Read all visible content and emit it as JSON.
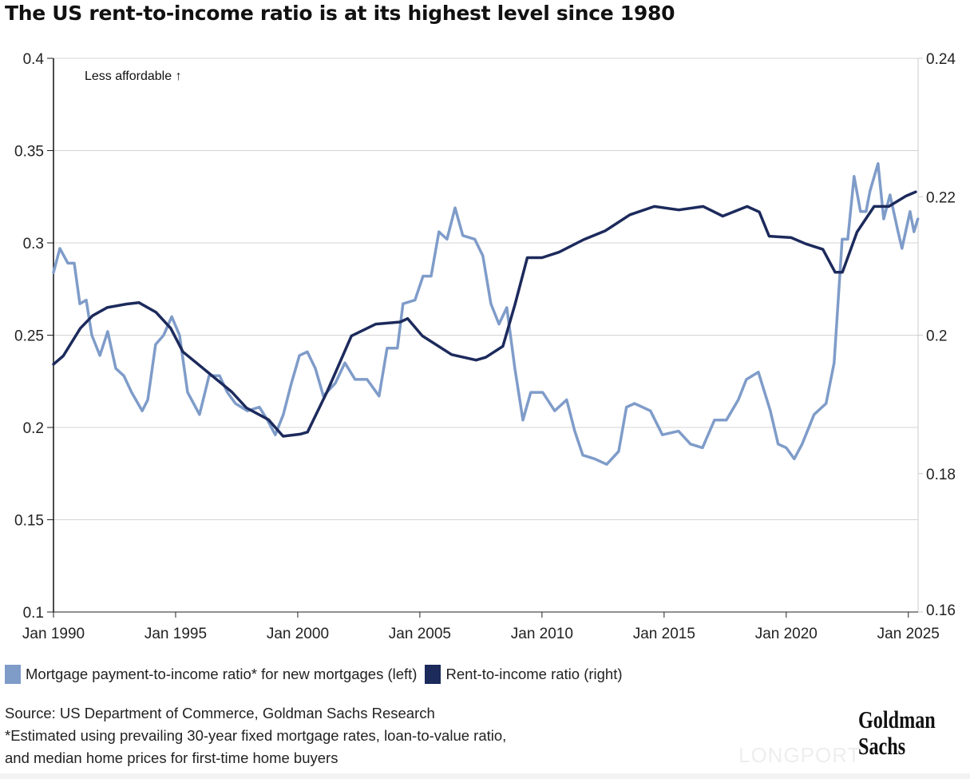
{
  "chart_data": {
    "type": "line",
    "title": "The US rent-to-income ratio is at its highest level since 1980",
    "annotation": "Less affordable ↑",
    "xlim": [
      1990,
      2025.4
    ],
    "x_ticks": [
      1990,
      1995,
      2000,
      2005,
      2010,
      2015,
      2020,
      2025
    ],
    "x_tick_labels": [
      "Jan 1990",
      "Jan 1995",
      "Jan 2000",
      "Jan 2005",
      "Jan 2010",
      "Jan 2015",
      "Jan 2020",
      "Jan 2025"
    ],
    "y_left": {
      "lim": [
        0.1,
        0.4
      ],
      "ticks": [
        0.1,
        0.15,
        0.2,
        0.25,
        0.3,
        0.35,
        0.4
      ],
      "tick_labels": [
        "0.1",
        "0.15",
        "0.2",
        "0.25",
        "0.3",
        "0.35",
        "0.4"
      ]
    },
    "y_right": {
      "lim": [
        0.16,
        0.24
      ],
      "ticks": [
        0.16,
        0.18,
        0.2,
        0.22,
        0.24
      ],
      "tick_labels": [
        "0.16",
        "0.18",
        "0.2",
        "0.22",
        "0.24"
      ]
    },
    "grid": "horizontal",
    "legend_position": "bottom",
    "series": [
      {
        "name": "Mortgage payment-to-income ratio* for new mortgages (left)",
        "axis": "left",
        "color": "#7f9cc9",
        "points": [
          [
            1990.0,
            0.284
          ],
          [
            1990.26,
            0.297
          ],
          [
            1990.59,
            0.289
          ],
          [
            1990.85,
            0.289
          ],
          [
            1991.08,
            0.267
          ],
          [
            1991.34,
            0.269
          ],
          [
            1991.57,
            0.25
          ],
          [
            1991.9,
            0.239
          ],
          [
            1992.22,
            0.252
          ],
          [
            1992.55,
            0.232
          ],
          [
            1992.88,
            0.228
          ],
          [
            1993.2,
            0.219
          ],
          [
            1993.63,
            0.209
          ],
          [
            1993.86,
            0.215
          ],
          [
            1994.18,
            0.245
          ],
          [
            1994.51,
            0.25
          ],
          [
            1994.84,
            0.26
          ],
          [
            1995.16,
            0.25
          ],
          [
            1995.49,
            0.219
          ],
          [
            1995.98,
            0.207
          ],
          [
            1996.37,
            0.228
          ],
          [
            1996.8,
            0.228
          ],
          [
            1997.12,
            0.219
          ],
          [
            1997.45,
            0.213
          ],
          [
            1997.94,
            0.209
          ],
          [
            1998.43,
            0.211
          ],
          [
            1998.76,
            0.204
          ],
          [
            1999.08,
            0.196
          ],
          [
            1999.41,
            0.207
          ],
          [
            1999.74,
            0.224
          ],
          [
            2000.07,
            0.239
          ],
          [
            2000.39,
            0.241
          ],
          [
            2000.72,
            0.232
          ],
          [
            2001.05,
            0.217
          ],
          [
            2001.54,
            0.224
          ],
          [
            2001.93,
            0.235
          ],
          [
            2002.35,
            0.226
          ],
          [
            2002.84,
            0.226
          ],
          [
            2003.33,
            0.217
          ],
          [
            2003.66,
            0.243
          ],
          [
            2004.08,
            0.243
          ],
          [
            2004.31,
            0.267
          ],
          [
            2004.8,
            0.269
          ],
          [
            2005.13,
            0.282
          ],
          [
            2005.46,
            0.282
          ],
          [
            2005.78,
            0.306
          ],
          [
            2006.11,
            0.302
          ],
          [
            2006.44,
            0.319
          ],
          [
            2006.76,
            0.304
          ],
          [
            2007.25,
            0.302
          ],
          [
            2007.58,
            0.293
          ],
          [
            2007.91,
            0.267
          ],
          [
            2008.24,
            0.256
          ],
          [
            2008.56,
            0.265
          ],
          [
            2008.89,
            0.232
          ],
          [
            2009.22,
            0.204
          ],
          [
            2009.54,
            0.219
          ],
          [
            2010.03,
            0.219
          ],
          [
            2010.52,
            0.209
          ],
          [
            2011.01,
            0.215
          ],
          [
            2011.34,
            0.198
          ],
          [
            2011.67,
            0.185
          ],
          [
            2012.16,
            0.183
          ],
          [
            2012.65,
            0.18
          ],
          [
            2013.14,
            0.187
          ],
          [
            2013.46,
            0.211
          ],
          [
            2013.79,
            0.213
          ],
          [
            2014.44,
            0.209
          ],
          [
            2014.93,
            0.196
          ],
          [
            2015.59,
            0.198
          ],
          [
            2016.08,
            0.191
          ],
          [
            2016.57,
            0.189
          ],
          [
            2017.06,
            0.204
          ],
          [
            2017.55,
            0.204
          ],
          [
            2018.04,
            0.215
          ],
          [
            2018.37,
            0.226
          ],
          [
            2018.86,
            0.23
          ],
          [
            2019.35,
            0.209
          ],
          [
            2019.67,
            0.191
          ],
          [
            2020.0,
            0.189
          ],
          [
            2020.33,
            0.183
          ],
          [
            2020.65,
            0.191
          ],
          [
            2021.14,
            0.207
          ],
          [
            2021.63,
            0.213
          ],
          [
            2021.96,
            0.235
          ],
          [
            2022.29,
            0.302
          ],
          [
            2022.52,
            0.302
          ],
          [
            2022.78,
            0.336
          ],
          [
            2023.04,
            0.317
          ],
          [
            2023.27,
            0.317
          ],
          [
            2023.43,
            0.328
          ],
          [
            2023.76,
            0.343
          ],
          [
            2023.99,
            0.313
          ],
          [
            2024.25,
            0.326
          ],
          [
            2024.58,
            0.306
          ],
          [
            2024.74,
            0.297
          ],
          [
            2025.07,
            0.317
          ],
          [
            2025.23,
            0.306
          ],
          [
            2025.39,
            0.313
          ]
        ]
      },
      {
        "name": "Rent-to-income ratio (right)",
        "axis": "right",
        "color": "#1c2a5c",
        "points": [
          [
            1990.0,
            0.1958
          ],
          [
            1990.4,
            0.197
          ],
          [
            1991.1,
            0.201
          ],
          [
            1991.6,
            0.2028
          ],
          [
            1992.2,
            0.204
          ],
          [
            1993.0,
            0.2045
          ],
          [
            1993.5,
            0.2047
          ],
          [
            1994.2,
            0.2033
          ],
          [
            1994.8,
            0.201
          ],
          [
            1995.3,
            0.1976
          ],
          [
            1996.3,
            0.1947
          ],
          [
            1997.3,
            0.1918
          ],
          [
            1997.9,
            0.1895
          ],
          [
            1998.8,
            0.1878
          ],
          [
            1999.4,
            0.1854
          ],
          [
            2000.1,
            0.1857
          ],
          [
            2000.4,
            0.186
          ],
          [
            2001.2,
            0.1918
          ],
          [
            2002.2,
            0.1999
          ],
          [
            2003.2,
            0.2016
          ],
          [
            2004.2,
            0.2019
          ],
          [
            2004.5,
            0.2024
          ],
          [
            2005.1,
            0.1999
          ],
          [
            2006.3,
            0.1972
          ],
          [
            2007.3,
            0.1964
          ],
          [
            2007.7,
            0.1968
          ],
          [
            2008.4,
            0.1984
          ],
          [
            2008.9,
            0.2045
          ],
          [
            2009.4,
            0.2112
          ],
          [
            2010.0,
            0.2112
          ],
          [
            2010.7,
            0.212
          ],
          [
            2011.7,
            0.2138
          ],
          [
            2012.6,
            0.2151
          ],
          [
            2013.6,
            0.2174
          ],
          [
            2014.6,
            0.2186
          ],
          [
            2015.6,
            0.2181
          ],
          [
            2016.6,
            0.2186
          ],
          [
            2017.4,
            0.2172
          ],
          [
            2018.4,
            0.2186
          ],
          [
            2018.9,
            0.2178
          ],
          [
            2019.3,
            0.2143
          ],
          [
            2020.2,
            0.2141
          ],
          [
            2020.8,
            0.2132
          ],
          [
            2021.5,
            0.2124
          ],
          [
            2022.0,
            0.2091
          ],
          [
            2022.3,
            0.2091
          ],
          [
            2022.9,
            0.2149
          ],
          [
            2023.6,
            0.2186
          ],
          [
            2024.2,
            0.2186
          ],
          [
            2024.9,
            0.2201
          ],
          [
            2025.3,
            0.2207
          ]
        ]
      }
    ]
  },
  "legend": {
    "items": [
      {
        "label": "Mortgage payment-to-income ratio* for new mortgages (left)",
        "color": "#7f9cc9"
      },
      {
        "label": "Rent-to-income ratio (right)",
        "color": "#1c2a5c"
      }
    ]
  },
  "footer": {
    "source": "Source: US Department of Commerce, Goldman Sachs Research",
    "note_line1": "*Estimated using prevailing 30-year fixed mortgage rates, loan-to-value ratio,",
    "note_line2": "and median home prices for first-time home buyers"
  },
  "logo": {
    "line1": "Goldman",
    "line2": "Sachs"
  },
  "watermark": "LONGPORT"
}
